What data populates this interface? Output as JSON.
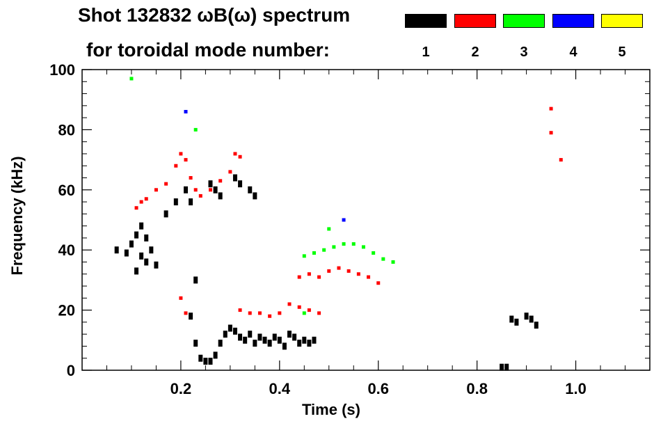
{
  "title_line1": "Shot 132832 ωB(ω) spectrum",
  "title_line2": "for toroidal mode number:",
  "legend": [
    {
      "label": "1",
      "color": "#000000"
    },
    {
      "label": "2",
      "color": "#ff0000"
    },
    {
      "label": "3",
      "color": "#00ff00"
    },
    {
      "label": "4",
      "color": "#0000ff"
    },
    {
      "label": "5",
      "color": "#ffff00"
    }
  ],
  "chart_data": {
    "type": "scatter",
    "title": "Shot 132832 ωB(ω) spectrum for toroidal mode number",
    "xlabel": "Time (s)",
    "ylabel": "Frequency (kHz)",
    "xlim": [
      0.0,
      1.15
    ],
    "ylim": [
      0,
      100
    ],
    "xticks": [
      0.2,
      0.4,
      0.6,
      0.8,
      1.0
    ],
    "xtick_labels": [
      "0.2",
      "0.4",
      "0.6",
      "0.8",
      "1.0"
    ],
    "yticks": [
      0,
      20,
      40,
      60,
      80,
      100
    ],
    "ytick_labels": [
      "0",
      "20",
      "40",
      "60",
      "80",
      "100"
    ],
    "series": [
      {
        "name": "n=1",
        "color": "#000000",
        "points": [
          [
            0.07,
            40
          ],
          [
            0.09,
            39
          ],
          [
            0.1,
            42
          ],
          [
            0.11,
            45
          ],
          [
            0.12,
            38
          ],
          [
            0.13,
            36
          ],
          [
            0.11,
            33
          ],
          [
            0.12,
            48
          ],
          [
            0.13,
            44
          ],
          [
            0.14,
            40
          ],
          [
            0.15,
            35
          ],
          [
            0.17,
            52
          ],
          [
            0.19,
            56
          ],
          [
            0.21,
            60
          ],
          [
            0.22,
            56
          ],
          [
            0.23,
            30
          ],
          [
            0.22,
            18
          ],
          [
            0.23,
            9
          ],
          [
            0.24,
            4
          ],
          [
            0.25,
            3
          ],
          [
            0.26,
            3
          ],
          [
            0.27,
            5
          ],
          [
            0.28,
            9
          ],
          [
            0.29,
            12
          ],
          [
            0.3,
            14
          ],
          [
            0.31,
            13
          ],
          [
            0.32,
            11
          ],
          [
            0.33,
            10
          ],
          [
            0.34,
            12
          ],
          [
            0.35,
            9
          ],
          [
            0.36,
            11
          ],
          [
            0.37,
            10
          ],
          [
            0.38,
            9
          ],
          [
            0.39,
            11
          ],
          [
            0.4,
            10
          ],
          [
            0.41,
            8
          ],
          [
            0.42,
            12
          ],
          [
            0.43,
            11
          ],
          [
            0.44,
            9
          ],
          [
            0.45,
            10
          ],
          [
            0.46,
            9
          ],
          [
            0.47,
            10
          ],
          [
            0.26,
            62
          ],
          [
            0.27,
            60
          ],
          [
            0.28,
            58
          ],
          [
            0.31,
            64
          ],
          [
            0.32,
            62
          ],
          [
            0.34,
            60
          ],
          [
            0.35,
            58
          ],
          [
            0.87,
            17
          ],
          [
            0.88,
            16
          ],
          [
            0.9,
            18
          ],
          [
            0.91,
            17
          ],
          [
            0.92,
            15
          ],
          [
            0.85,
            1
          ],
          [
            0.86,
            1
          ]
        ]
      },
      {
        "name": "n=2",
        "color": "#ff0000",
        "points": [
          [
            0.11,
            54
          ],
          [
            0.12,
            56
          ],
          [
            0.13,
            57
          ],
          [
            0.15,
            60
          ],
          [
            0.17,
            62
          ],
          [
            0.19,
            68
          ],
          [
            0.2,
            72
          ],
          [
            0.21,
            70
          ],
          [
            0.22,
            64
          ],
          [
            0.23,
            60
          ],
          [
            0.24,
            58
          ],
          [
            0.26,
            60
          ],
          [
            0.28,
            63
          ],
          [
            0.3,
            66
          ],
          [
            0.31,
            72
          ],
          [
            0.32,
            71
          ],
          [
            0.2,
            24
          ],
          [
            0.21,
            19
          ],
          [
            0.32,
            20
          ],
          [
            0.34,
            19
          ],
          [
            0.36,
            19
          ],
          [
            0.38,
            18
          ],
          [
            0.4,
            19
          ],
          [
            0.42,
            22
          ],
          [
            0.44,
            21
          ],
          [
            0.46,
            20
          ],
          [
            0.48,
            19
          ],
          [
            0.44,
            31
          ],
          [
            0.46,
            32
          ],
          [
            0.48,
            31
          ],
          [
            0.5,
            33
          ],
          [
            0.52,
            34
          ],
          [
            0.54,
            33
          ],
          [
            0.56,
            32
          ],
          [
            0.58,
            31
          ],
          [
            0.6,
            29
          ],
          [
            0.95,
            87
          ],
          [
            0.95,
            79
          ],
          [
            0.97,
            70
          ]
        ]
      },
      {
        "name": "n=3",
        "color": "#00ff00",
        "points": [
          [
            0.1,
            97
          ],
          [
            0.23,
            80
          ],
          [
            0.45,
            38
          ],
          [
            0.47,
            39
          ],
          [
            0.49,
            40
          ],
          [
            0.51,
            41
          ],
          [
            0.53,
            42
          ],
          [
            0.55,
            42
          ],
          [
            0.57,
            41
          ],
          [
            0.59,
            39
          ],
          [
            0.61,
            37
          ],
          [
            0.63,
            36
          ],
          [
            0.45,
            19
          ],
          [
            0.5,
            47
          ]
        ]
      },
      {
        "name": "n=4",
        "color": "#0000ff",
        "points": [
          [
            0.21,
            86
          ],
          [
            0.53,
            50
          ]
        ]
      },
      {
        "name": "n=5",
        "color": "#ffff00",
        "points": []
      }
    ]
  }
}
